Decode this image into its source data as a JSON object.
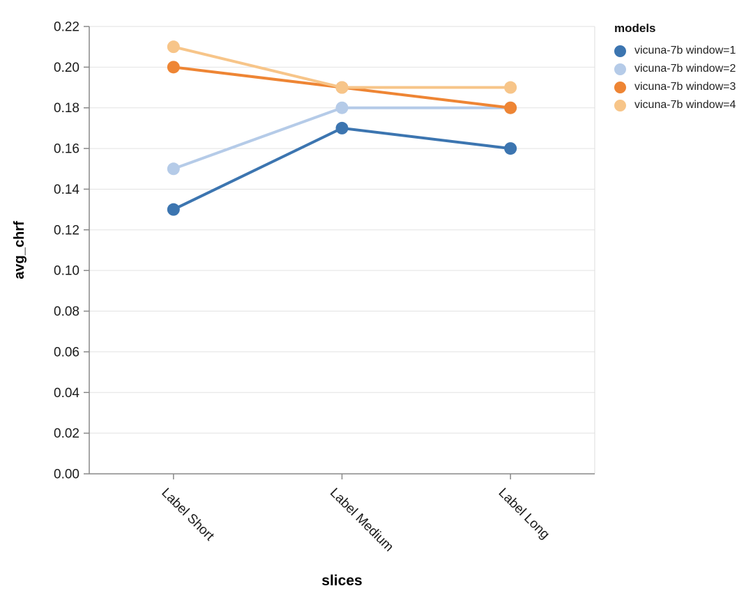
{
  "chart_data": {
    "type": "line",
    "title": "",
    "xlabel": "slices",
    "ylabel": "avg_chrf",
    "categories": [
      "Label Short",
      "Label Medium",
      "Label Long"
    ],
    "series": [
      {
        "name": "vicuna-7b window=1",
        "color": "#3c75b0",
        "values": [
          0.13,
          0.17,
          0.16
        ]
      },
      {
        "name": "vicuna-7b window=2",
        "color": "#b5cbe8",
        "values": [
          0.15,
          0.18,
          0.18
        ]
      },
      {
        "name": "vicuna-7b window=3",
        "color": "#ee8534",
        "values": [
          0.2,
          0.19,
          0.18
        ]
      },
      {
        "name": "vicuna-7b window=4",
        "color": "#f7c589",
        "values": [
          0.21,
          0.19,
          0.19
        ]
      }
    ],
    "legend_title": "models",
    "legend_position": "right",
    "ylim": [
      0,
      0.22
    ],
    "y_tick_step": 0.02,
    "y_ticks": [
      "0.00",
      "0.02",
      "0.04",
      "0.06",
      "0.08",
      "0.10",
      "0.12",
      "0.14",
      "0.16",
      "0.18",
      "0.20",
      "0.22"
    ],
    "grid": true,
    "x_label_angle": 45
  },
  "style_colors": {
    "grid": "#e2e2e2",
    "axis": "#888888",
    "tick_label": "#1a1a1a",
    "axis_title": "#000000",
    "plot_border": "#dddddd"
  }
}
